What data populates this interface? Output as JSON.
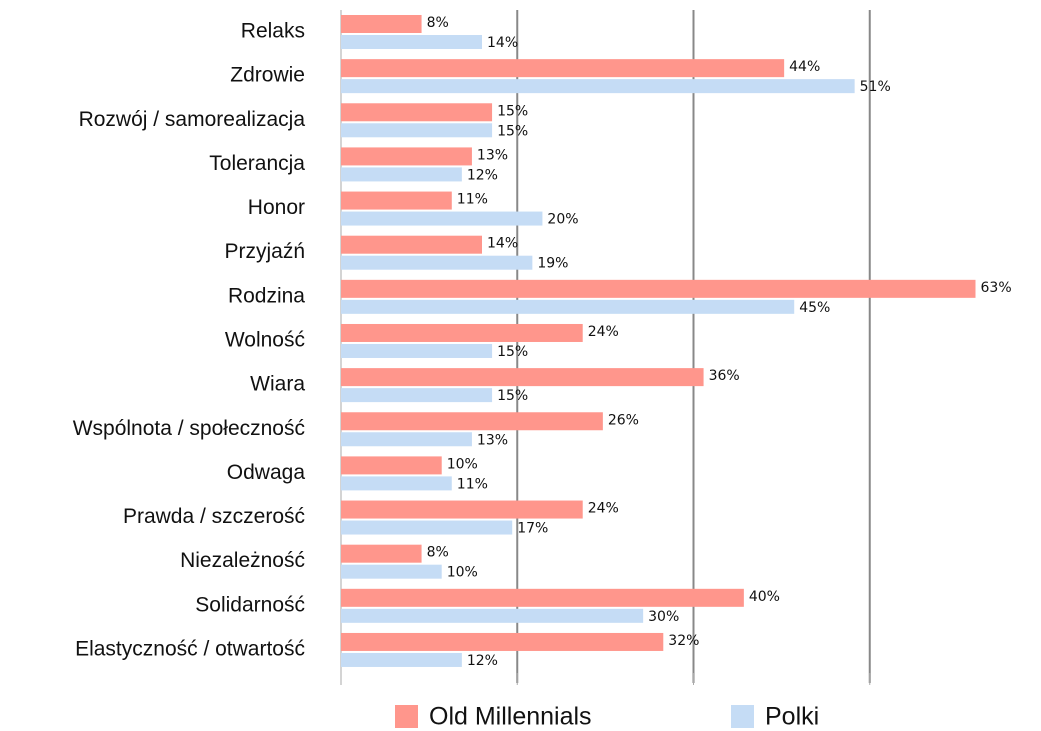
{
  "chart_data": {
    "type": "bar",
    "orientation": "horizontal",
    "categories": [
      "Relaks",
      "Zdrowie",
      "Rozwój / samorealizacja",
      "Tolerancja",
      "Honor",
      "Przyjaźń",
      "Rodzina",
      "Wolność",
      "Wiara",
      "Wspólnota / społeczność",
      "Odwaga",
      "Prawda / szczerość",
      "Niezależność",
      "Solidarność",
      "Elastyczność / otwartość"
    ],
    "series": [
      {
        "name": "Old Millennials",
        "color": "#ff968c",
        "values": [
          8,
          44,
          15,
          13,
          11,
          14,
          63,
          24,
          36,
          26,
          10,
          24,
          8,
          40,
          32
        ],
        "value_labels": [
          "8%",
          "44%",
          "15%",
          "13%",
          "11%",
          "14%",
          "63%",
          "24%",
          "36%",
          "26%",
          "10%",
          "24%",
          "8%",
          "40%",
          "32%"
        ]
      },
      {
        "name": "Polki",
        "color": "#c5dcf5",
        "values": [
          14,
          51,
          15,
          12,
          20,
          19,
          45,
          15,
          15,
          13,
          11,
          17,
          10,
          30,
          12
        ],
        "value_labels": [
          "14%",
          "51%",
          "15%",
          "12%",
          "20%",
          "19%",
          "45%",
          "15%",
          "15%",
          "13%",
          "11%",
          "17%",
          "10%",
          "30%",
          "12%"
        ]
      }
    ],
    "xlim": [
      0,
      70
    ],
    "xticks": [
      0,
      17.5,
      35,
      52.5,
      70
    ],
    "grid": true,
    "legend": "bottom"
  }
}
